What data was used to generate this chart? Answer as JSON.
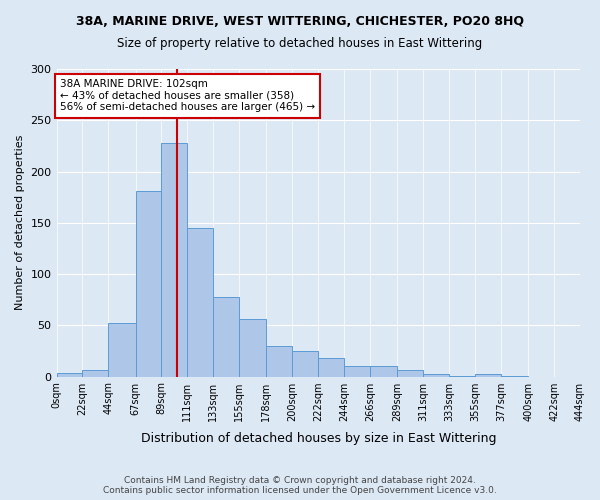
{
  "title1": "38A, MARINE DRIVE, WEST WITTERING, CHICHESTER, PO20 8HQ",
  "title2": "Size of property relative to detached houses in East Wittering",
  "xlabel": "Distribution of detached houses by size in East Wittering",
  "ylabel": "Number of detached properties",
  "footnote": "Contains HM Land Registry data © Crown copyright and database right 2024.\nContains public sector information licensed under the Open Government Licence v3.0.",
  "bar_values": [
    3,
    6,
    52,
    181,
    228,
    145,
    78,
    56,
    30,
    25,
    18,
    10,
    10,
    6,
    2,
    1,
    2,
    1,
    0,
    0
  ],
  "bin_edges": [
    0,
    22,
    44,
    67,
    89,
    111,
    133,
    155,
    178,
    200,
    222,
    244,
    266,
    289,
    311,
    333,
    355,
    377,
    400,
    422,
    444
  ],
  "xtick_labels": [
    "0sqm",
    "22sqm",
    "44sqm",
    "67sqm",
    "89sqm",
    "111sqm",
    "133sqm",
    "155sqm",
    "178sqm",
    "200sqm",
    "222sqm",
    "244sqm",
    "266sqm",
    "289sqm",
    "311sqm",
    "333sqm",
    "355sqm",
    "377sqm",
    "400sqm",
    "422sqm",
    "444sqm"
  ],
  "bar_color": "#aec6e8",
  "bar_edge_color": "#5b9bd5",
  "vline_x": 102,
  "vline_color": "#cc0000",
  "annotation_text": "38A MARINE DRIVE: 102sqm\n← 43% of detached houses are smaller (358)\n56% of semi-detached houses are larger (465) →",
  "annotation_box_color": "#ffffff",
  "annotation_box_edge": "#cc0000",
  "bg_color": "#dde8f5",
  "plot_bg_color": "#dde8f5",
  "ylim": [
    0,
    300
  ],
  "yticks": [
    0,
    50,
    100,
    150,
    200,
    250,
    300
  ]
}
